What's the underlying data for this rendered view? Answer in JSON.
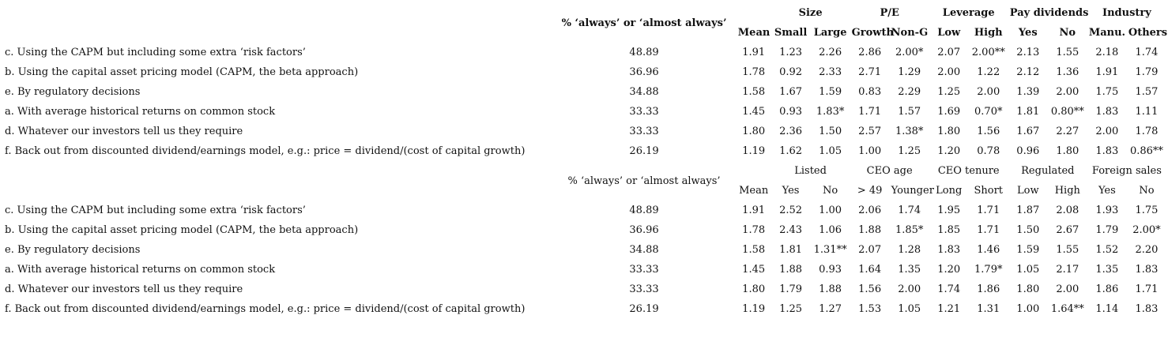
{
  "top_table": {
    "pct_header": "% ‘always’ or ‘almost always’",
    "groups": [
      "Size",
      "P/E",
      "Leverage",
      "Pay dividends",
      "Industry"
    ],
    "subheaders": [
      "Mean",
      "Small",
      "Large",
      "Growth",
      "Non-G",
      "Low",
      "High",
      "Yes",
      "No",
      "Manu.",
      "Others"
    ],
    "rows": [
      {
        "label": "c. Using the CAPM but including some extra ‘risk factors’",
        "pct": "48.89",
        "values": [
          "1.91",
          "1.23",
          "2.26",
          "2.86",
          "2.00*",
          "2.07",
          "2.00**",
          "2.13",
          "1.55",
          "2.18",
          "1.74"
        ]
      },
      {
        "label": "b. Using the capital asset pricing model (CAPM, the beta approach)",
        "pct": "36.96",
        "values": [
          "1.78",
          "0.92",
          "2.33",
          "2.71",
          "1.29",
          "2.00",
          "1.22",
          "2.12",
          "1.36",
          "1.91",
          "1.79"
        ]
      },
      {
        "label": "e. By regulatory decisions",
        "pct": "34.88",
        "values": [
          "1.58",
          "1.67",
          "1.59",
          "0.83",
          "2.29",
          "1.25",
          "2.00",
          "1.39",
          "2.00",
          "1.75",
          "1.57"
        ]
      },
      {
        "label": "a. With average historical returns on common stock",
        "pct": "33.33",
        "values": [
          "1.45",
          "0.93",
          "1.83*",
          "1.71",
          "1.57",
          "1.69",
          "0.70*",
          "1.81",
          "0.80**",
          "1.83",
          "1.11"
        ]
      },
      {
        "label": "d. Whatever our investors tell us they require",
        "pct": "33.33",
        "values": [
          "1.80",
          "2.36",
          "1.50",
          "2.57",
          "1.38*",
          "1.80",
          "1.56",
          "1.67",
          "2.27",
          "2.00",
          "1.78"
        ]
      },
      {
        "label": "f. Back out from discounted dividend/earnings model, e.g.: price = dividend/(cost of capital growth)",
        "pct": "26.19",
        "values": [
          "1.19",
          "1.62",
          "1.05",
          "1.00",
          "1.25",
          "1.20",
          "0.78",
          "0.96",
          "1.80",
          "1.83",
          "0.86**"
        ]
      }
    ]
  },
  "bottom_table": {
    "pct_header": "% ‘always’ or ‘almost always’",
    "groups": [
      "Listed",
      "CEO age",
      "CEO tenure",
      "Regulated",
      "Foreign sales"
    ],
    "subheaders": [
      "Mean",
      "Yes",
      "No",
      "> 49",
      "Younger",
      "Long",
      "Short",
      "Low",
      "High",
      "Yes",
      "No"
    ],
    "rows": [
      {
        "label": "c. Using the CAPM but including some extra ‘risk factors’",
        "pct": "48.89",
        "values": [
          "1.91",
          "2.52",
          "1.00",
          "2.06",
          "1.74",
          "1.95",
          "1.71",
          "1.87",
          "2.08",
          "1.93",
          "1.75"
        ]
      },
      {
        "label": "b. Using the capital asset pricing model (CAPM, the beta approach)",
        "pct": "36.96",
        "values": [
          "1.78",
          "2.43",
          "1.06",
          "1.88",
          "1.85*",
          "1.85",
          "1.71",
          "1.50",
          "2.67",
          "1.79",
          "2.00*"
        ]
      },
      {
        "label": "e. By regulatory decisions",
        "pct": "34.88",
        "values": [
          "1.58",
          "1.81",
          "1.31**",
          "2.07",
          "1.28",
          "1.83",
          "1.46",
          "1.59",
          "1.55",
          "1.52",
          "2.20"
        ]
      },
      {
        "label": "a. With average historical returns on common stock",
        "pct": "33.33",
        "values": [
          "1.45",
          "1.88",
          "0.93",
          "1.64",
          "1.35",
          "1.20",
          "1.79*",
          "1.05",
          "2.17",
          "1.35",
          "1.83"
        ]
      },
      {
        "label": "d. Whatever our investors tell us they require",
        "pct": "33.33",
        "values": [
          "1.80",
          "1.79",
          "1.88",
          "1.56",
          "2.00",
          "1.74",
          "1.86",
          "1.80",
          "2.00",
          "1.86",
          "1.71"
        ]
      },
      {
        "label": "f. Back out from discounted dividend/earnings model, e.g.: price = dividend/(cost of capital growth)",
        "pct": "26.19",
        "values": [
          "1.19",
          "1.25",
          "1.27",
          "1.53",
          "1.05",
          "1.21",
          "1.31",
          "1.00",
          "1.64**",
          "1.14",
          "1.83"
        ]
      }
    ]
  }
}
